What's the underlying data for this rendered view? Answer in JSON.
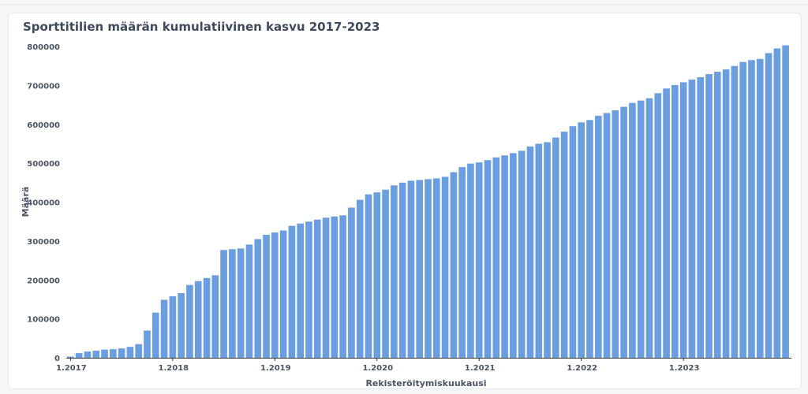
{
  "chart_title": "Sporttitilien määrän kumulatiivinen kasvu 2017-2023",
  "colors": {
    "bar": "#6a9ee0",
    "axis": "#333333",
    "text": "#4a5466"
  },
  "chart_data": {
    "type": "bar",
    "title": "Sporttitilien määrän kumulatiivinen kasvu 2017-2023",
    "xlabel": "Rekisteröitymiskuukausi",
    "ylabel": "Määrä",
    "ylim": [
      0,
      800000
    ],
    "yticks": [
      "0",
      "100000",
      "200000",
      "300000",
      "400000",
      "500000",
      "600000",
      "700000",
      "800000"
    ],
    "xticks": [
      "1.2017",
      "1.2018",
      "1.2019",
      "1.2020",
      "1.2021",
      "1.2022",
      "1.2023"
    ],
    "grid": false,
    "values": [
      3000,
      12000,
      16000,
      18000,
      21000,
      22000,
      24000,
      28000,
      35000,
      70000,
      116000,
      149000,
      158000,
      166000,
      187000,
      197000,
      205000,
      212000,
      277000,
      279000,
      281000,
      291000,
      305000,
      316000,
      322000,
      327000,
      339000,
      345000,
      350000,
      355000,
      360000,
      363000,
      366000,
      386000,
      406000,
      420000,
      425000,
      432000,
      443000,
      450000,
      455000,
      457000,
      459000,
      461000,
      465000,
      477000,
      490000,
      499000,
      502000,
      508000,
      515000,
      520000,
      526000,
      532000,
      543000,
      550000,
      554000,
      566000,
      581000,
      595000,
      605000,
      611000,
      622000,
      629000,
      636000,
      645000,
      655000,
      661000,
      667000,
      680000,
      692000,
      701000,
      708000,
      715000,
      721000,
      729000,
      735000,
      741000,
      750000,
      760000,
      765000,
      768000,
      783000,
      795000,
      803000
    ]
  }
}
